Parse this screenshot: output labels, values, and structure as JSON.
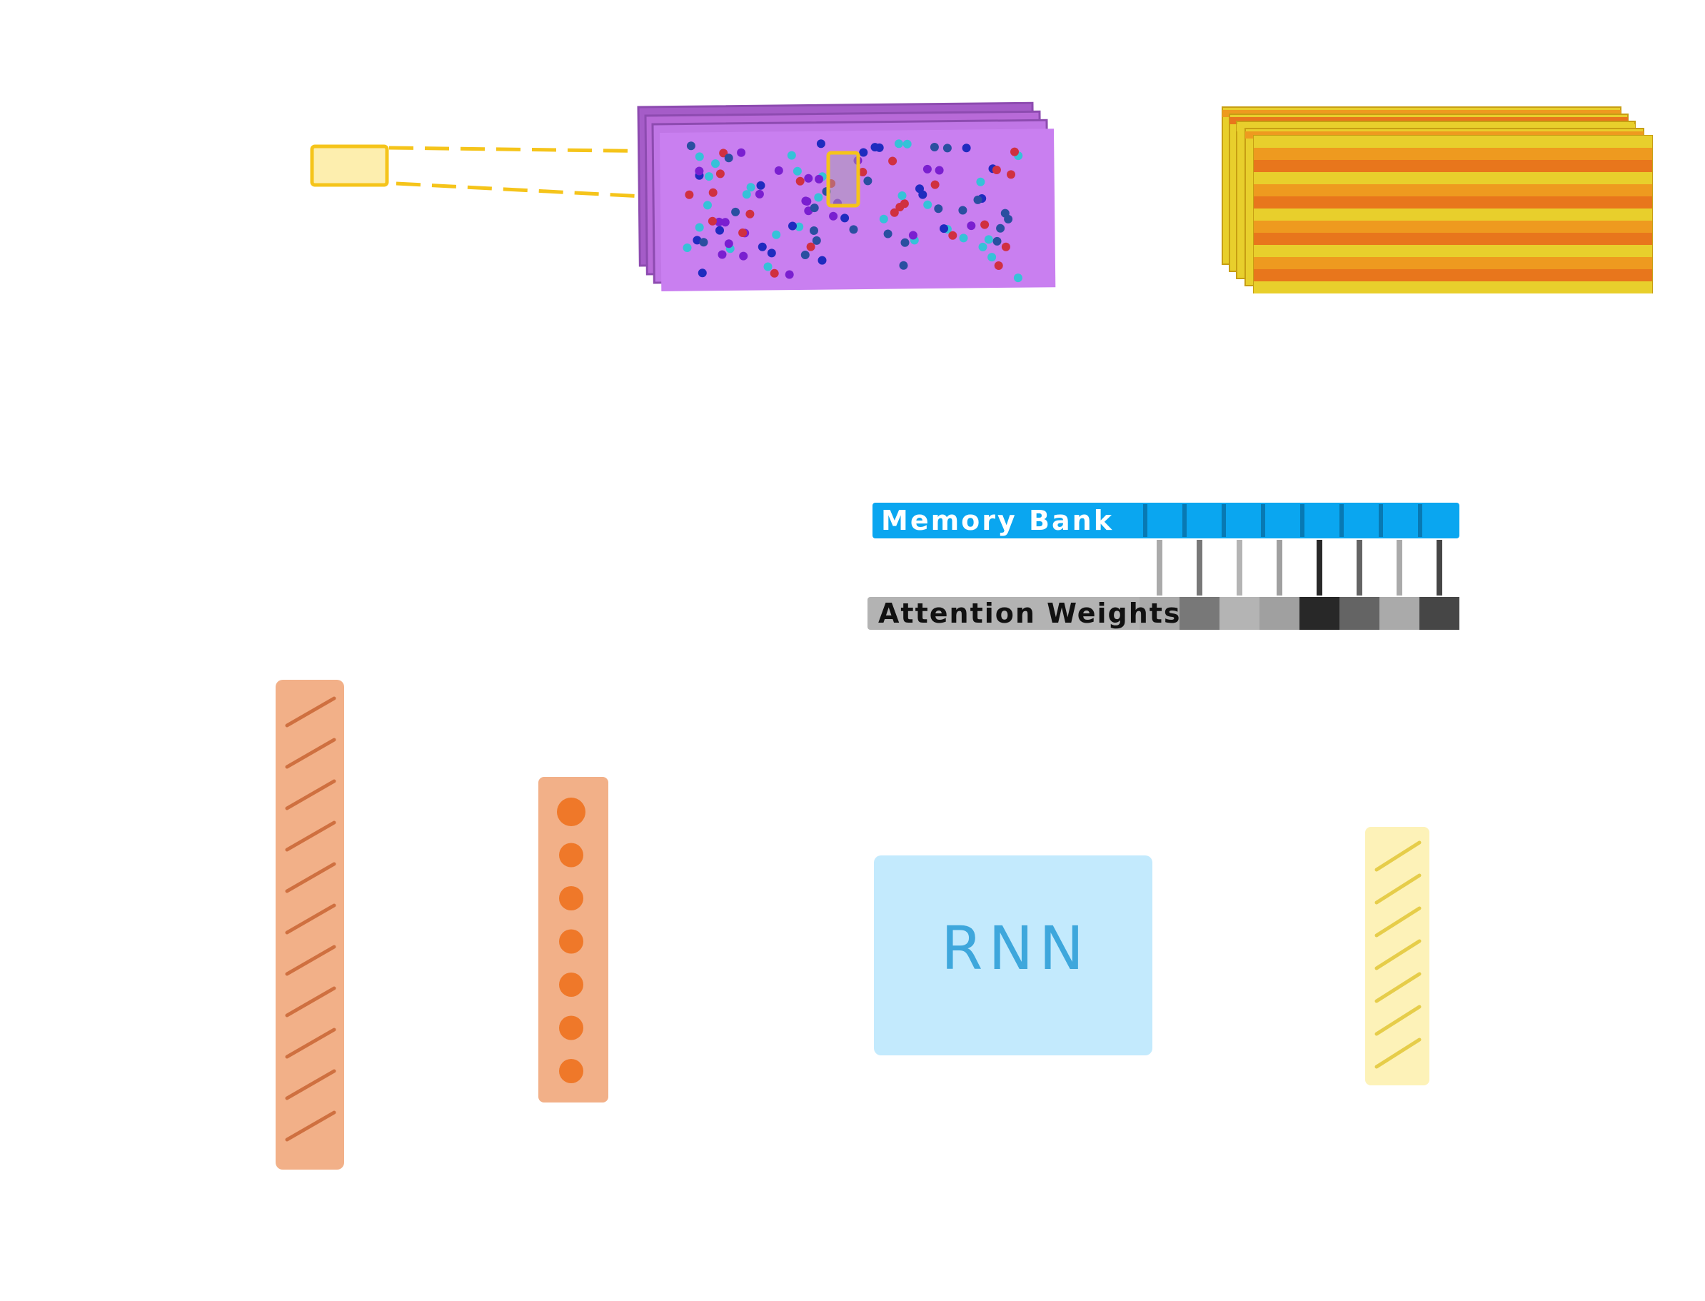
{
  "diagram": {
    "memory_bank": {
      "label": "Memory Bank",
      "color": "#0aa6f0",
      "slot_count": 8
    },
    "attention_weights": {
      "label": "Attention Weights",
      "bar_color": "#b3b3b3",
      "weights": [
        0.3,
        0.55,
        0.25,
        0.35,
        0.95,
        0.65,
        0.3,
        0.8
      ]
    },
    "rnn": {
      "label": "RNN",
      "fill": "#c3eafd",
      "text_color": "#3ea7dc"
    },
    "feature_maps": {
      "fill": "#c97ff0",
      "dot_colors": [
        "#1f2bbf",
        "#2a4fa0",
        "#7a1fd0",
        "#d03040",
        "#35c2d8"
      ]
    },
    "striped_maps": {
      "colors": [
        "#e8cf2c",
        "#ee9a1f",
        "#e8761c"
      ]
    },
    "vectors": {
      "hatched_tall": {
        "fill": "#f2b088",
        "stroke": "#cf7040"
      },
      "dotted": {
        "fill": "#f2b088",
        "dot": "#ef7829",
        "dot_count": 7
      },
      "hatched_small": {
        "fill": "#fdf2b8",
        "stroke": "#e6cd4a"
      }
    },
    "patch": {
      "fill": "#fdeeae",
      "stroke": "#f5c41a"
    }
  }
}
